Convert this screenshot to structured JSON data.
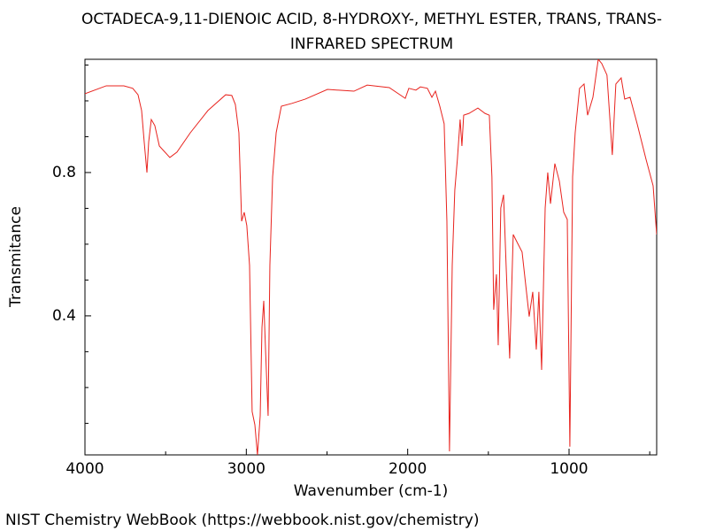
{
  "chart_data": {
    "type": "line",
    "title": "OCTADECA-9,11-DIENOIC ACID, 8-HYDROXY-, METHYL ESTER, TRANS, TRANS-",
    "subtitle": "INFRARED SPECTRUM",
    "x_label": "Wavenumber (cm-1)",
    "y_label": "Transmitance",
    "footer": "NIST Chemistry WebBook (https://webbook.nist.gov/chemistry)",
    "xlim": [
      4000,
      457
    ],
    "ylim": [
      0.012,
      1.116
    ],
    "xticks": [
      4000,
      3000,
      2000,
      1000
    ],
    "x_minor_ticks": [
      3500,
      2500,
      1500,
      500
    ],
    "yticks": [
      0.4,
      0.8
    ],
    "y_minor_ticks": [
      0.1,
      0.2,
      0.3,
      0.5,
      0.6,
      0.7,
      0.9,
      1.0,
      1.1
    ],
    "series": [
      {
        "color": "#e8231e",
        "x": [
          4000,
          3868,
          3759,
          3704,
          3671,
          3649,
          3633,
          3616,
          3605,
          3589,
          3567,
          3539,
          3474,
          3430,
          3347,
          3238,
          3128,
          3090,
          3068,
          3046,
          3029,
          3013,
          2997,
          2980,
          2964,
          2947,
          2931,
          2914,
          2903,
          2892,
          2881,
          2865,
          2854,
          2837,
          2815,
          2783,
          2717,
          2634,
          2497,
          2333,
          2251,
          2114,
          2015,
          1993,
          1949,
          1921,
          1878,
          1850,
          1828,
          1801,
          1774,
          1757,
          1741,
          1724,
          1708,
          1692,
          1675,
          1664,
          1653,
          1620,
          1565,
          1521,
          1494,
          1478,
          1467,
          1450,
          1439,
          1423,
          1406,
          1390,
          1368,
          1346,
          1318,
          1291,
          1247,
          1225,
          1203,
          1187,
          1170,
          1148,
          1132,
          1115,
          1088,
          1060,
          1033,
          1011,
          995,
          978,
          962,
          935,
          907,
          885,
          852,
          819,
          797,
          765,
          732,
          710,
          677,
          655,
          622,
          578,
          523,
          479,
          457
        ],
        "values": [
          1.02,
          1.042,
          1.042,
          1.035,
          1.017,
          0.973,
          0.886,
          0.8,
          0.886,
          0.948,
          0.931,
          0.874,
          0.842,
          0.857,
          0.911,
          0.973,
          1.017,
          1.015,
          0.99,
          0.911,
          0.664,
          0.689,
          0.652,
          0.541,
          0.133,
          0.096,
          0.012,
          0.121,
          0.368,
          0.442,
          0.306,
          0.121,
          0.541,
          0.788,
          0.911,
          0.985,
          0.993,
          1.005,
          1.032,
          1.027,
          1.044,
          1.037,
          1.007,
          1.035,
          1.03,
          1.039,
          1.035,
          1.01,
          1.027,
          0.985,
          0.936,
          0.664,
          0.022,
          0.541,
          0.751,
          0.837,
          0.948,
          0.874,
          0.96,
          0.965,
          0.98,
          0.965,
          0.96,
          0.788,
          0.417,
          0.516,
          0.318,
          0.701,
          0.738,
          0.541,
          0.281,
          0.627,
          0.602,
          0.578,
          0.398,
          0.467,
          0.306,
          0.467,
          0.249,
          0.701,
          0.8,
          0.713,
          0.825,
          0.776,
          0.689,
          0.669,
          0.035,
          0.788,
          0.911,
          1.035,
          1.047,
          0.96,
          1.01,
          1.116,
          1.104,
          1.072,
          0.849,
          1.047,
          1.064,
          1.005,
          1.01,
          0.936,
          0.837,
          0.763,
          0.627
        ]
      }
    ]
  }
}
